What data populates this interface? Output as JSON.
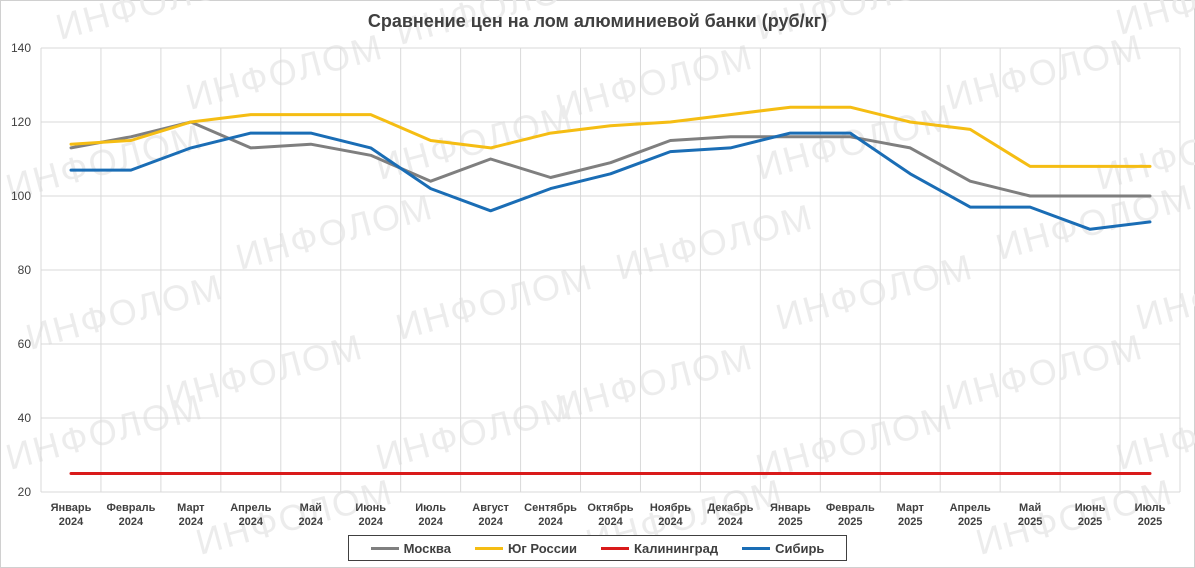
{
  "chart_data": {
    "type": "line",
    "title": "Сравнение цен на лом алюминиевой банки (руб/кг)",
    "watermark": "ИНФОЛОМ",
    "categories": [
      [
        "Январь",
        "2024"
      ],
      [
        "Февраль",
        "2024"
      ],
      [
        "Март",
        "2024"
      ],
      [
        "Апрель",
        "2024"
      ],
      [
        "Май",
        "2024"
      ],
      [
        "Июнь",
        "2024"
      ],
      [
        "Июль",
        "2024"
      ],
      [
        "Август",
        "2024"
      ],
      [
        "Сентябрь",
        "2024"
      ],
      [
        "Октябрь",
        "2024"
      ],
      [
        "Ноябрь",
        "2024"
      ],
      [
        "Декабрь",
        "2024"
      ],
      [
        "Январь",
        "2025"
      ],
      [
        "Февраль",
        "2025"
      ],
      [
        "Март",
        "2025"
      ],
      [
        "Апрель",
        "2025"
      ],
      [
        "Май",
        "2025"
      ],
      [
        "Июнь",
        "2025"
      ],
      [
        "Июль",
        "2025"
      ]
    ],
    "ylim": [
      20,
      140
    ],
    "yticks": [
      20,
      40,
      60,
      80,
      100,
      120,
      140
    ],
    "grid": true,
    "legend_position": "bottom",
    "series": [
      {
        "name": "Москва",
        "color": "#7f7f7f",
        "values": [
          113,
          116,
          120,
          113,
          114,
          111,
          104,
          110,
          105,
          109,
          115,
          116,
          116,
          116,
          113,
          104,
          100,
          100,
          100
        ]
      },
      {
        "name": "Юг России",
        "color": "#f5bd13",
        "values": [
          114,
          115,
          120,
          122,
          122,
          122,
          115,
          113,
          117,
          119,
          120,
          122,
          124,
          124,
          120,
          118,
          108,
          108,
          108
        ]
      },
      {
        "name": "Калининград",
        "color": "#d91a1a",
        "values": [
          25,
          25,
          25,
          25,
          25,
          25,
          25,
          25,
          25,
          25,
          25,
          25,
          25,
          25,
          25,
          25,
          25,
          25,
          25
        ]
      },
      {
        "name": "Сибирь",
        "color": "#1a6db5",
        "values": [
          107,
          107,
          113,
          117,
          117,
          113,
          102,
          96,
          102,
          106,
          112,
          113,
          117,
          117,
          106,
          97,
          97,
          91,
          93
        ]
      }
    ]
  }
}
